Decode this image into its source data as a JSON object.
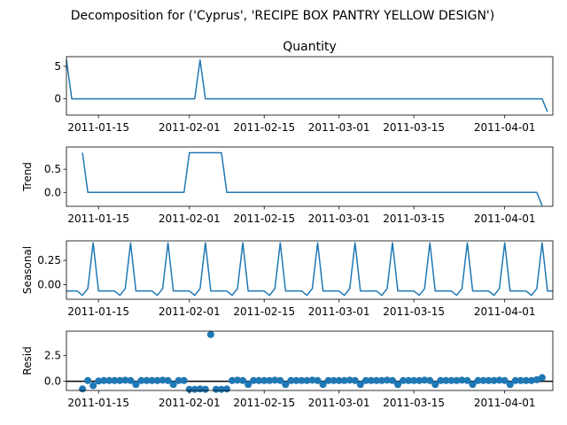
{
  "figure": {
    "title": "Decomposition for ('Cyprus', 'RECIPE BOX PANTRY YELLOW DESIGN')"
  },
  "colors": {
    "series": "#1f77b4",
    "axis": "#000000",
    "zero_line": "#000000"
  },
  "chart_data": [
    {
      "type": "line",
      "title": "Quantity",
      "ylabel": "",
      "x_start": "2011-01-09",
      "x_end": "2011-04-10",
      "xlim": [
        "2011-01-09",
        "2011-04-10"
      ],
      "x_ticks": [
        "2011-01-15",
        "2011-02-01",
        "2011-02-15",
        "2011-03-01",
        "2011-03-15",
        "2011-04-01"
      ],
      "ylim": [
        -2.5,
        6.5
      ],
      "y_ticks": [
        0,
        5
      ],
      "y_tick_labels": [
        "0",
        "5"
      ],
      "series": [
        {
          "values": [
            6,
            0,
            0,
            0,
            0,
            0,
            0,
            0,
            0,
            0,
            0,
            0,
            0,
            0,
            0,
            0,
            0,
            0,
            0,
            0,
            0,
            0,
            0,
            0,
            0,
            6,
            0,
            0,
            0,
            0,
            0,
            0,
            0,
            0,
            0,
            0,
            0,
            0,
            0,
            0,
            0,
            0,
            0,
            0,
            0,
            0,
            0,
            0,
            0,
            0,
            0,
            0,
            0,
            0,
            0,
            0,
            0,
            0,
            0,
            0,
            0,
            0,
            0,
            0,
            0,
            0,
            0,
            0,
            0,
            0,
            0,
            0,
            0,
            0,
            0,
            0,
            0,
            0,
            0,
            0,
            0,
            0,
            0,
            0,
            0,
            0,
            0,
            0,
            0,
            0,
            -2
          ]
        }
      ]
    },
    {
      "type": "line",
      "title": "",
      "ylabel": "Trend",
      "x_start": "2011-01-12",
      "x_end": "2011-04-07",
      "xlim": [
        "2011-01-09",
        "2011-04-10"
      ],
      "x_ticks": [
        "2011-01-15",
        "2011-02-01",
        "2011-02-15",
        "2011-03-01",
        "2011-03-15",
        "2011-04-01"
      ],
      "ylim": [
        -0.3,
        0.98
      ],
      "y_ticks": [
        0,
        0.5
      ],
      "y_tick_labels": [
        "0.0",
        "0.5"
      ],
      "series": [
        {
          "values": [
            0.857,
            0,
            0,
            0,
            0,
            0,
            0,
            0,
            0,
            0,
            0,
            0,
            0,
            0,
            0,
            0,
            0,
            0,
            0,
            0,
            0.857,
            0.857,
            0.857,
            0.857,
            0.857,
            0.857,
            0.857,
            0,
            0,
            0,
            0,
            0,
            0,
            0,
            0,
            0,
            0,
            0,
            0,
            0,
            0,
            0,
            0,
            0,
            0,
            0,
            0,
            0,
            0,
            0,
            0,
            0,
            0,
            0,
            0,
            0,
            0,
            0,
            0,
            0,
            0,
            0,
            0,
            0,
            0,
            0,
            0,
            0,
            0,
            0,
            0,
            0,
            0,
            0,
            0,
            0,
            0,
            0,
            0,
            0,
            0,
            0,
            0,
            0,
            0,
            0,
            -0.286
          ]
        }
      ]
    },
    {
      "type": "line",
      "title": "",
      "ylabel": "Seasonal",
      "x_start": "2011-01-09",
      "x_end": "2011-04-10",
      "xlim": [
        "2011-01-09",
        "2011-04-10"
      ],
      "x_ticks": [
        "2011-01-15",
        "2011-02-01",
        "2011-02-15",
        "2011-03-01",
        "2011-03-15",
        "2011-04-01"
      ],
      "ylim": [
        -0.15,
        0.45
      ],
      "y_ticks": [
        0,
        0.25
      ],
      "y_tick_labels": [
        "0.00",
        "0.25"
      ],
      "pattern": "weekly",
      "series": [
        {
          "values": [
            -0.065,
            -0.065,
            -0.065,
            -0.11,
            -0.04,
            0.43,
            -0.065,
            -0.065,
            -0.065,
            -0.065,
            -0.11,
            -0.04,
            0.43,
            -0.065,
            -0.065,
            -0.065,
            -0.065,
            -0.11,
            -0.04,
            0.43,
            -0.065,
            -0.065,
            -0.065,
            -0.065,
            -0.11,
            -0.04,
            0.43,
            -0.065,
            -0.065,
            -0.065,
            -0.065,
            -0.11,
            -0.04,
            0.43,
            -0.065,
            -0.065,
            -0.065,
            -0.065,
            -0.11,
            -0.04,
            0.43,
            -0.065,
            -0.065,
            -0.065,
            -0.065,
            -0.11,
            -0.04,
            0.43,
            -0.065,
            -0.065,
            -0.065,
            -0.065,
            -0.11,
            -0.04,
            0.43,
            -0.065,
            -0.065,
            -0.065,
            -0.065,
            -0.11,
            -0.04,
            0.43,
            -0.065,
            -0.065,
            -0.065,
            -0.065,
            -0.11,
            -0.04,
            0.43,
            -0.065,
            -0.065,
            -0.065,
            -0.065,
            -0.11,
            -0.04,
            0.43,
            -0.065,
            -0.065,
            -0.065,
            -0.065,
            -0.11,
            -0.04,
            0.43,
            -0.065,
            -0.065,
            -0.065,
            -0.065,
            -0.11,
            -0.04,
            0.43,
            -0.065,
            -0.065
          ]
        }
      ]
    },
    {
      "type": "scatter",
      "title": "",
      "ylabel": "Resid",
      "x_start": "2011-01-12",
      "x_end": "2011-04-07",
      "xlim": [
        "2011-01-09",
        "2011-04-10"
      ],
      "x_ticks": [
        "2011-01-15",
        "2011-02-01",
        "2011-02-15",
        "2011-03-01",
        "2011-03-15",
        "2011-04-01"
      ],
      "ylim": [
        -0.9,
        4.9
      ],
      "y_ticks": [
        0,
        2.5
      ],
      "y_tick_labels": [
        "0.0",
        "2.5"
      ],
      "zero_line": true,
      "series": [
        {
          "values": [
            -0.75,
            0.07,
            -0.43,
            0.02,
            0.07,
            0.07,
            0.07,
            0.07,
            0.11,
            0.07,
            -0.32,
            0.07,
            0.07,
            0.07,
            0.07,
            0.11,
            0.07,
            -0.32,
            0.07,
            0.07,
            -0.79,
            -0.79,
            -0.75,
            -0.79,
            4.57,
            -0.79,
            -0.79,
            -0.75,
            0.07,
            0.11,
            0.07,
            -0.32,
            0.07,
            0.07,
            0.07,
            0.07,
            0.11,
            0.07,
            -0.32,
            0.07,
            0.07,
            0.07,
            0.07,
            0.11,
            0.07,
            -0.32,
            0.07,
            0.07,
            0.07,
            0.07,
            0.11,
            0.07,
            -0.32,
            0.07,
            0.07,
            0.07,
            0.07,
            0.11,
            0.07,
            -0.32,
            0.07,
            0.07,
            0.07,
            0.07,
            0.11,
            0.07,
            -0.32,
            0.07,
            0.07,
            0.07,
            0.07,
            0.11,
            0.07,
            -0.32,
            0.07,
            0.07,
            0.07,
            0.07,
            0.11,
            0.07,
            -0.32,
            0.07,
            0.07,
            0.07,
            0.07,
            0.15,
            0.35
          ]
        }
      ]
    }
  ]
}
